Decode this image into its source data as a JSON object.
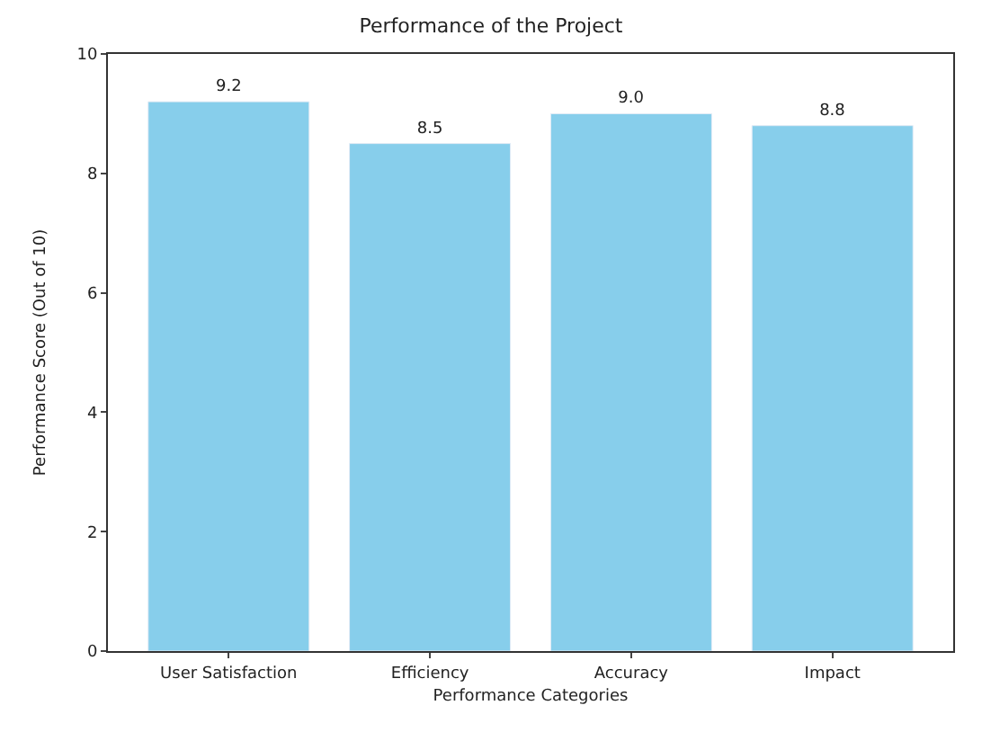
{
  "chart_data": {
    "type": "bar",
    "title": "Performance of the Project",
    "xlabel": "Performance Categories",
    "ylabel": "Performance Score (Out of 10)",
    "categories": [
      "User Satisfaction",
      "Efficiency",
      "Accuracy",
      "Impact"
    ],
    "values": [
      9.2,
      8.5,
      9.0,
      8.8
    ],
    "color": "#87ceeb",
    "value_labels": [
      "9.2",
      "8.5",
      "9.0",
      "8.8"
    ],
    "ylim": [
      0,
      10
    ],
    "yticks": [
      0,
      2,
      4,
      6,
      8,
      10
    ]
  }
}
